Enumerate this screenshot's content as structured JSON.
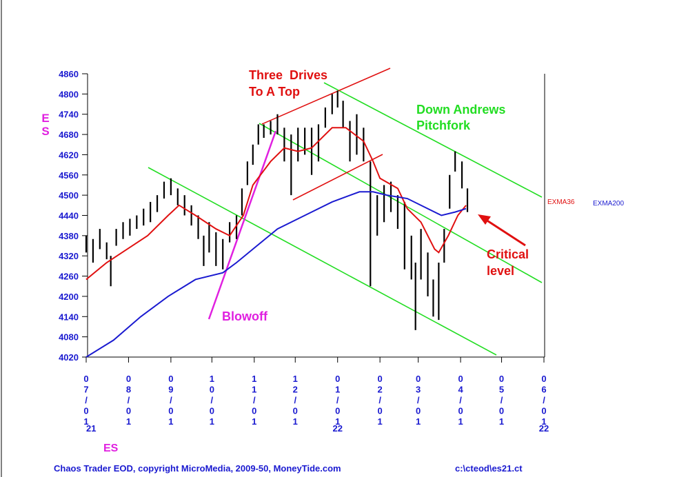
{
  "chart_data": {
    "type": "ohlc",
    "symbol_label": "ES",
    "symbol_label_bottom": "ES",
    "annotations": {
      "drives_1": "Three  Drives",
      "drives_2": "To A Top",
      "pitchfork_1": "Down Andrews",
      "pitchfork_2": "Pitchfork",
      "blowoff": "Blowoff",
      "critical_1": "Critical",
      "critical_2": "level"
    },
    "footer": "Chaos Trader EOD, copyright MicroMedia, 2009-50, MoneyTide.com",
    "file": "c:\\cteod\\es21.ct",
    "years": [
      {
        "value": 0,
        "label": "21"
      },
      {
        "value": 184,
        "label": "22"
      },
      {
        "value": 335,
        "label": "22"
      }
    ],
    "xlim": [
      0,
      335
    ],
    "xticks": [
      {
        "value": 0,
        "label": "07/01"
      },
      {
        "value": 31,
        "label": "08/01"
      },
      {
        "value": 62,
        "label": "09/01"
      },
      {
        "value": 92,
        "label": "10/01"
      },
      {
        "value": 123,
        "label": "11/01"
      },
      {
        "value": 153,
        "label": "12/01"
      },
      {
        "value": 184,
        "label": "01/01"
      },
      {
        "value": 215,
        "label": "02/01"
      },
      {
        "value": 243,
        "label": "03/01"
      },
      {
        "value": 274,
        "label": "04/01"
      },
      {
        "value": 304,
        "label": "05/01"
      },
      {
        "value": 335,
        "label": "06/01"
      }
    ],
    "ylim": [
      4020,
      4860
    ],
    "yticks": [
      4020,
      4080,
      4140,
      4200,
      4260,
      4320,
      4380,
      4440,
      4500,
      4560,
      4620,
      4680,
      4740,
      4800,
      4860
    ],
    "bars": {
      "color": "#000000",
      "x": [
        0,
        5,
        10,
        15,
        18,
        22,
        27,
        32,
        37,
        42,
        47,
        52,
        57,
        62,
        67,
        72,
        77,
        82,
        86,
        90,
        95,
        100,
        105,
        110,
        114,
        118,
        122,
        126,
        130,
        135,
        140,
        145,
        150,
        155,
        160,
        165,
        170,
        175,
        180,
        184,
        188,
        193,
        198,
        203,
        208,
        213,
        218,
        223,
        228,
        233,
        238,
        241,
        245,
        250,
        254,
        258,
        262,
        266,
        270,
        275,
        279
      ],
      "low": [
        4330,
        4300,
        4340,
        4310,
        4230,
        4350,
        4370,
        4380,
        4400,
        4410,
        4420,
        4450,
        4490,
        4500,
        4470,
        4440,
        4410,
        4370,
        4290,
        4330,
        4290,
        4280,
        4360,
        4370,
        4440,
        4530,
        4590,
        4650,
        4670,
        4680,
        4680,
        4600,
        4500,
        4600,
        4620,
        4560,
        4600,
        4700,
        4740,
        4760,
        4700,
        4600,
        4620,
        4600,
        4230,
        4380,
        4420,
        4450,
        4400,
        4280,
        4250,
        4100,
        4250,
        4200,
        4140,
        4130,
        4300,
        4460,
        4570,
        4520,
        4450
      ],
      "high": [
        4380,
        4370,
        4400,
        4360,
        4320,
        4400,
        4420,
        4430,
        4440,
        4460,
        4480,
        4500,
        4540,
        4550,
        4520,
        4500,
        4470,
        4440,
        4380,
        4420,
        4390,
        4370,
        4420,
        4440,
        4520,
        4600,
        4650,
        4710,
        4710,
        4720,
        4740,
        4700,
        4680,
        4700,
        4700,
        4700,
        4710,
        4760,
        4800,
        4810,
        4780,
        4720,
        4740,
        4700,
        4600,
        4500,
        4530,
        4540,
        4500,
        4480,
        4380,
        4300,
        4400,
        4330,
        4250,
        4300,
        4400,
        4560,
        4630,
        4600,
        4520
      ]
    },
    "series": [
      {
        "name": "EXMA36",
        "color": "#e01010",
        "x": [
          0,
          15,
          30,
          45,
          60,
          68,
          80,
          95,
          105,
          115,
          122,
          135,
          145,
          155,
          165,
          180,
          190,
          203,
          210,
          215,
          228,
          235,
          245,
          255,
          258,
          265,
          272,
          278
        ],
        "values": [
          4250,
          4300,
          4340,
          4380,
          4440,
          4470,
          4440,
          4400,
          4380,
          4440,
          4530,
          4600,
          4640,
          4630,
          4640,
          4700,
          4700,
          4660,
          4600,
          4550,
          4520,
          4460,
          4420,
          4340,
          4330,
          4380,
          4440,
          4470
        ]
      },
      {
        "name": "EXMA200",
        "color": "#1a1ad0",
        "x": [
          0,
          20,
          40,
          60,
          80,
          100,
          110,
          125,
          140,
          160,
          180,
          200,
          210,
          220,
          235,
          250,
          260,
          270,
          278
        ],
        "values": [
          4020,
          4070,
          4140,
          4200,
          4250,
          4270,
          4300,
          4350,
          4400,
          4440,
          4480,
          4510,
          4510,
          4500,
          4490,
          4460,
          4440,
          4450,
          4460
        ]
      }
    ]
  }
}
